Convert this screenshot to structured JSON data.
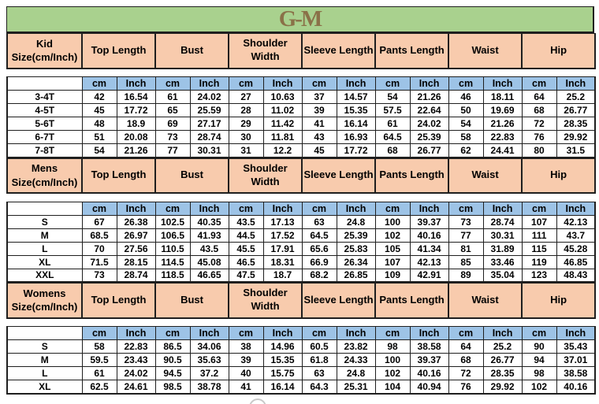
{
  "logo": {
    "text": "G-M"
  },
  "colors": {
    "banner_green": "#a9d18e",
    "header_peach": "#f8cbad",
    "unit_blue": "#9dc3e6",
    "logo_brown": "#8a7148",
    "border_dark": "#1f1f1f"
  },
  "chart_data": {
    "type": "table",
    "title": "G-M",
    "columns": [
      "Top Length",
      "Bust",
      "Shoulder Width",
      "Sleeve Length",
      "Pants Length",
      "Waist",
      "Hip"
    ],
    "unit_labels": [
      "cm",
      "Inch"
    ],
    "sections": [
      {
        "id": "kid",
        "label_line1": "Kid",
        "label_line2": "Size(cm/Inch)",
        "rows": [
          {
            "size": "3-4T",
            "values": [
              "42",
              "16.54",
              "61",
              "24.02",
              "27",
              "10.63",
              "37",
              "14.57",
              "54",
              "21.26",
              "46",
              "18.11",
              "64",
              "25.2"
            ]
          },
          {
            "size": "4-5T",
            "values": [
              "45",
              "17.72",
              "65",
              "25.59",
              "28",
              "11.02",
              "39",
              "15.35",
              "57.5",
              "22.64",
              "50",
              "19.69",
              "68",
              "26.77"
            ]
          },
          {
            "size": "5-6T",
            "values": [
              "48",
              "18.9",
              "69",
              "27.17",
              "29",
              "11.42",
              "41",
              "16.14",
              "61",
              "24.02",
              "54",
              "21.26",
              "72",
              "28.35"
            ]
          },
          {
            "size": "6-7T",
            "values": [
              "51",
              "20.08",
              "73",
              "28.74",
              "30",
              "11.81",
              "43",
              "16.93",
              "64.5",
              "25.39",
              "58",
              "22.83",
              "76",
              "29.92"
            ]
          },
          {
            "size": "7-8T",
            "values": [
              "54",
              "21.26",
              "77",
              "30.31",
              "31",
              "12.2",
              "45",
              "17.72",
              "68",
              "26.77",
              "62",
              "24.41",
              "80",
              "31.5"
            ]
          }
        ]
      },
      {
        "id": "mens",
        "label_line1": "Mens",
        "label_line2": "Size(cm/Inch)",
        "rows": [
          {
            "size": "S",
            "values": [
              "67",
              "26.38",
              "102.5",
              "40.35",
              "43.5",
              "17.13",
              "63",
              "24.8",
              "100",
              "39.37",
              "73",
              "28.74",
              "107",
              "42.13"
            ]
          },
          {
            "size": "M",
            "values": [
              "68.5",
              "26.97",
              "106.5",
              "41.93",
              "44.5",
              "17.52",
              "64.5",
              "25.39",
              "102",
              "40.16",
              "77",
              "30.31",
              "111",
              "43.7"
            ]
          },
          {
            "size": "L",
            "values": [
              "70",
              "27.56",
              "110.5",
              "43.5",
              "45.5",
              "17.91",
              "65.6",
              "25.83",
              "105",
              "41.34",
              "81",
              "31.89",
              "115",
              "45.28"
            ]
          },
          {
            "size": "XL",
            "values": [
              "71.5",
              "28.15",
              "114.5",
              "45.08",
              "46.5",
              "18.31",
              "66.9",
              "26.34",
              "107",
              "42.13",
              "85",
              "33.46",
              "119",
              "46.85"
            ]
          },
          {
            "size": "XXL",
            "values": [
              "73",
              "28.74",
              "118.5",
              "46.65",
              "47.5",
              "18.7",
              "68.2",
              "26.85",
              "109",
              "42.91",
              "89",
              "35.04",
              "123",
              "48.43"
            ]
          }
        ]
      },
      {
        "id": "womens",
        "label_line1": "Womens",
        "label_line2": "Size(cm/Inch)",
        "rows": [
          {
            "size": "S",
            "values": [
              "58",
              "22.83",
              "86.5",
              "34.06",
              "38",
              "14.96",
              "60.5",
              "23.82",
              "98",
              "38.58",
              "64",
              "25.2",
              "90",
              "35.43"
            ]
          },
          {
            "size": "M",
            "values": [
              "59.5",
              "23.43",
              "90.5",
              "35.63",
              "39",
              "15.35",
              "61.8",
              "24.33",
              "100",
              "39.37",
              "68",
              "26.77",
              "94",
              "37.01"
            ]
          },
          {
            "size": "L",
            "values": [
              "61",
              "24.02",
              "94.5",
              "37.2",
              "40",
              "15.75",
              "63",
              "24.8",
              "102",
              "40.16",
              "72",
              "28.35",
              "98",
              "38.58"
            ]
          },
          {
            "size": "XL",
            "values": [
              "62.5",
              "24.61",
              "98.5",
              "38.78",
              "41",
              "16.14",
              "64.3",
              "25.31",
              "104",
              "40.94",
              "76",
              "29.92",
              "102",
              "40.16"
            ]
          }
        ]
      }
    ]
  }
}
